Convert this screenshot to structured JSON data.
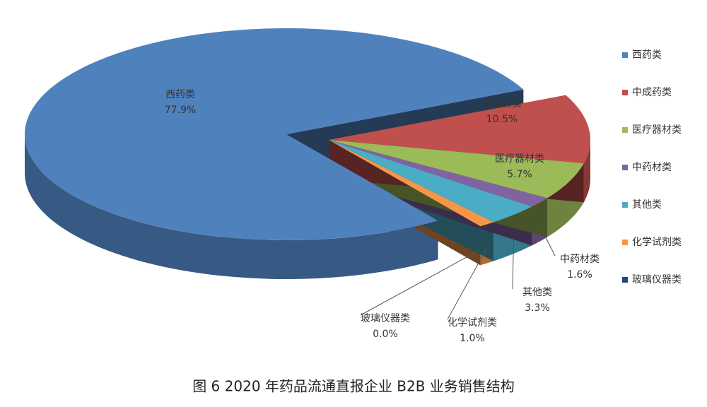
{
  "chart_data": {
    "type": "pie",
    "title": "图 6 2020 年药品流通直报企业 B2B 业务销售结构",
    "categories": [
      "西药类",
      "中成药类",
      "医疗器材类",
      "中药材类",
      "其他类",
      "化学试剂类",
      "玻璃仪器类"
    ],
    "values": [
      77.9,
      10.5,
      5.7,
      1.6,
      3.3,
      1.0,
      0.0
    ],
    "value_labels": [
      "77.9%",
      "10.5%",
      "5.7%",
      "1.6%",
      "3.3%",
      "1.0%",
      "0.0%"
    ],
    "colors": [
      "#4f81bd",
      "#c0504d",
      "#9bbb59",
      "#8064a2",
      "#4bacc6",
      "#f79646",
      "#1f497d"
    ]
  }
}
